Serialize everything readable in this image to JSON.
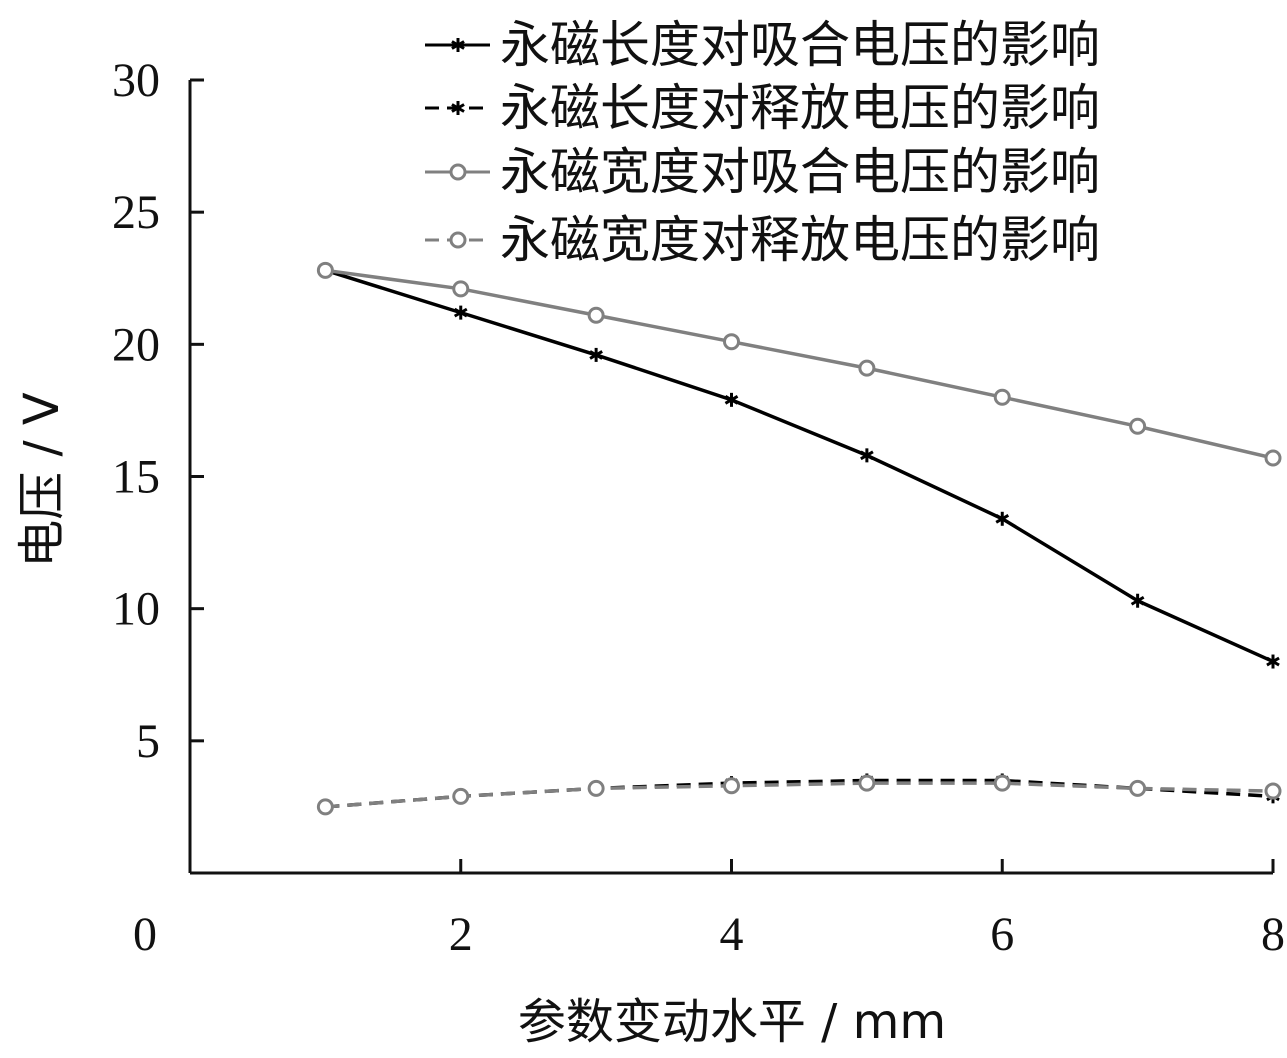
{
  "chart_data": {
    "type": "line",
    "xlabel": "参数变动水平 / mm",
    "ylabel": "电压 / V",
    "xlim": [
      0,
      8
    ],
    "ylim": [
      0,
      30
    ],
    "x_ticks": [
      0,
      2,
      4,
      6,
      8
    ],
    "y_ticks": [
      5,
      10,
      15,
      20,
      25,
      30
    ],
    "origin_label": "0",
    "grid": false,
    "legend_position": "top-right",
    "x": [
      1,
      2,
      3,
      4,
      5,
      6,
      7,
      8
    ],
    "series": [
      {
        "name": "永磁长度对吸合电压的影响",
        "color": "#000000",
        "dash": "solid",
        "marker": "star",
        "values": [
          22.8,
          21.2,
          19.6,
          17.9,
          15.8,
          13.4,
          10.3,
          8.0
        ]
      },
      {
        "name": "永磁长度对释放电压的影响",
        "color": "#000000",
        "dash": "dashed",
        "marker": "star",
        "values": [
          2.5,
          2.9,
          3.2,
          3.4,
          3.5,
          3.5,
          3.2,
          2.9
        ]
      },
      {
        "name": "永磁宽度对吸合电压的影响",
        "color": "#808080",
        "dash": "solid",
        "marker": "circle",
        "values": [
          22.8,
          22.1,
          21.1,
          20.1,
          19.1,
          18.0,
          16.9,
          15.7
        ]
      },
      {
        "name": "永磁宽度对释放电压的影响",
        "color": "#808080",
        "dash": "dashed",
        "marker": "circle",
        "values": [
          2.5,
          2.9,
          3.2,
          3.3,
          3.4,
          3.4,
          3.2,
          3.1
        ]
      }
    ]
  }
}
